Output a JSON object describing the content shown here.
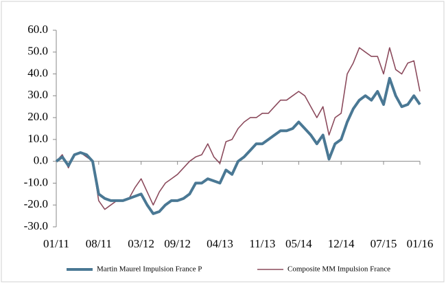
{
  "chart_data": {
    "type": "line",
    "x": [
      "01/11",
      "02/11",
      "03/11",
      "04/11",
      "05/11",
      "06/11",
      "07/11",
      "08/11",
      "09/11",
      "10/11",
      "11/11",
      "12/11",
      "01/12",
      "02/12",
      "03/12",
      "04/12",
      "05/12",
      "06/12",
      "07/12",
      "08/12",
      "09/12",
      "10/12",
      "11/12",
      "12/12",
      "01/13",
      "02/13",
      "03/13",
      "04/13",
      "05/13",
      "06/13",
      "07/13",
      "08/13",
      "09/13",
      "10/13",
      "11/13",
      "12/13",
      "01/14",
      "02/14",
      "03/14",
      "04/14",
      "05/14",
      "06/14",
      "07/14",
      "08/14",
      "09/14",
      "10/14",
      "11/14",
      "12/14",
      "01/15",
      "02/15",
      "03/15",
      "04/15",
      "05/15",
      "06/15",
      "07/15",
      "08/15",
      "09/15",
      "10/15",
      "11/15",
      "12/15",
      "01/16"
    ],
    "series": [
      {
        "name": "Martin Maurel Impulsion France P",
        "color": "#4a7894",
        "width": 4,
        "values": [
          0,
          2,
          -2,
          3,
          4,
          3,
          0,
          -15,
          -17,
          -18,
          -18,
          -18,
          -17,
          -16,
          -15,
          -20,
          -24,
          -23,
          -20,
          -18,
          -18,
          -17,
          -15,
          -10,
          -10,
          -8,
          -9,
          -10,
          -4,
          -6,
          0,
          2,
          5,
          8,
          8,
          10,
          12,
          14,
          14,
          15,
          18,
          15,
          12,
          8,
          12,
          1,
          8,
          10,
          18,
          24,
          28,
          30,
          28,
          32,
          26,
          38,
          30,
          25,
          26,
          30,
          26
        ]
      },
      {
        "name": "Composite MM Impulsion France",
        "color": "#8b4a5c",
        "width": 1.6,
        "values": [
          0,
          3,
          -3,
          3,
          4,
          2,
          0,
          -18,
          -22,
          -20,
          -18,
          -18,
          -17,
          -12,
          -8,
          -14,
          -20,
          -14,
          -10,
          -8,
          -6,
          -3,
          0,
          2,
          3,
          8,
          2,
          -1,
          9,
          10,
          15,
          18,
          20,
          20,
          22,
          22,
          25,
          28,
          28,
          30,
          32,
          30,
          25,
          20,
          25,
          12,
          20,
          22,
          40,
          45,
          52,
          50,
          48,
          48,
          40,
          52,
          42,
          40,
          45,
          46,
          32
        ]
      }
    ],
    "xticks": [
      "01/11",
      "08/11",
      "03/12",
      "09/12",
      "04/13",
      "11/13",
      "05/14",
      "12/14",
      "07/15",
      "01/16"
    ],
    "ylim": [
      -30,
      60
    ],
    "yticks": [
      {
        "value": -30,
        "label": "-30.0"
      },
      {
        "value": -20,
        "label": "-20.0"
      },
      {
        "value": -10,
        "label": "-10.0"
      },
      {
        "value": 0,
        "label": "0.0"
      },
      {
        "value": 10,
        "label": "10.0"
      },
      {
        "value": 20,
        "label": "20.0"
      },
      {
        "value": 30,
        "label": "30.0"
      },
      {
        "value": 40,
        "label": "40.0"
      },
      {
        "value": 50,
        "label": "50.0"
      },
      {
        "value": 60,
        "label": "60.0"
      }
    ],
    "legend": "bottom"
  }
}
